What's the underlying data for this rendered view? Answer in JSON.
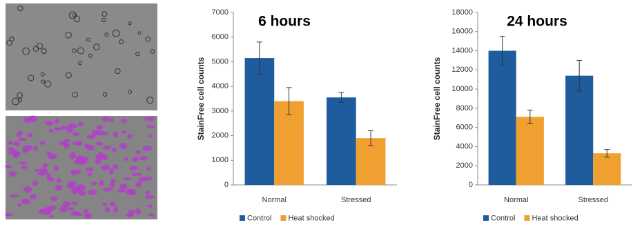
{
  "chart_data": [
    {
      "type": "bar",
      "title": "6 hours",
      "ylabel": "StainFree cell counts",
      "categories": [
        "Normal",
        "Stressed"
      ],
      "series": [
        {
          "name": "Control",
          "color": "#1f5c9e",
          "values": [
            5150,
            3550
          ],
          "errors": [
            650,
            200
          ]
        },
        {
          "name": "Heat shocked",
          "color": "#f0a030",
          "values": [
            3400,
            1900
          ],
          "errors": [
            550,
            300
          ]
        }
      ],
      "ylim": [
        0,
        7000
      ],
      "yticks": [
        0,
        1000,
        2000,
        3000,
        4000,
        5000,
        6000,
        7000
      ]
    },
    {
      "type": "bar",
      "title": "24 hours",
      "ylabel": "StainFree cell counts",
      "categories": [
        "Normal",
        "Stressed"
      ],
      "series": [
        {
          "name": "Control",
          "color": "#1f5c9e",
          "values": [
            14000,
            11400
          ],
          "errors": [
            1500,
            1600
          ]
        },
        {
          "name": "Heat shocked",
          "color": "#f0a030",
          "values": [
            7100,
            3300
          ],
          "errors": [
            700,
            400
          ]
        }
      ],
      "ylim": [
        0,
        18000
      ],
      "yticks": [
        0,
        2000,
        4000,
        6000,
        8000,
        10000,
        12000,
        14000,
        16000,
        18000
      ]
    }
  ]
}
